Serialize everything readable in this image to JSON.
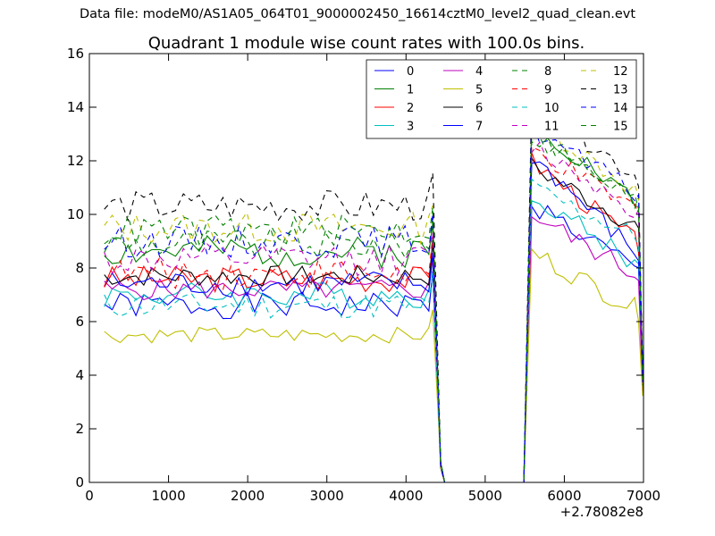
{
  "header": {
    "file_label": "Data file: modeM0/AS1A05_064T01_9000002450_16614cztM0_level2_quad_clean.evt"
  },
  "chart_data": {
    "type": "line",
    "title": "Quadrant 1 module wise count rates with 100.0s bins.",
    "xlabel": "",
    "ylabel": "",
    "x_offset_label": "+2.78082e8",
    "xlim": [
      0,
      7000
    ],
    "ylim": [
      0,
      16
    ],
    "xticks": [
      0,
      1000,
      2000,
      3000,
      4000,
      5000,
      6000,
      7000
    ],
    "yticks": [
      0,
      2,
      4,
      6,
      8,
      10,
      12,
      14,
      16
    ],
    "legend_position": "top-right",
    "legend_columns": 4,
    "grid": false,
    "x": [
      188,
      288,
      388,
      488,
      588,
      688,
      788,
      888,
      988,
      1088,
      1188,
      1288,
      1388,
      1488,
      1588,
      1688,
      1788,
      1888,
      1988,
      2088,
      2188,
      2288,
      2388,
      2488,
      2588,
      2688,
      2788,
      2888,
      2988,
      3088,
      3188,
      3288,
      3388,
      3488,
      3588,
      3688,
      3788,
      3888,
      3988,
      4088,
      4188,
      4288,
      4338,
      4438,
      4488,
      4588,
      5488,
      5588,
      5688,
      5788,
      5888,
      5988,
      6088,
      6188,
      6288,
      6388,
      6488,
      6588,
      6688,
      6788,
      6888,
      6938,
      6990
    ],
    "series": [
      {
        "name": "0",
        "color": "#0000ff",
        "style": "solid",
        "base": 6.6,
        "pre_amp": 0.5,
        "peak": 10.4,
        "post_end": 8.0
      },
      {
        "name": "1",
        "color": "#008000",
        "style": "solid",
        "base": 8.6,
        "pre_amp": 0.6,
        "peak": 13.5,
        "post_end": 10.5
      },
      {
        "name": "2",
        "color": "#ff0000",
        "style": "solid",
        "base": 7.6,
        "pre_amp": 0.5,
        "peak": 12.0,
        "post_end": 9.0
      },
      {
        "name": "3",
        "color": "#00bfbf",
        "style": "solid",
        "base": 7.0,
        "pre_amp": 0.5,
        "peak": 10.8,
        "post_end": 8.2
      },
      {
        "name": "4",
        "color": "#bf00bf",
        "style": "solid",
        "base": 7.2,
        "pre_amp": 0.4,
        "peak": 10.0,
        "post_end": 7.8
      },
      {
        "name": "5",
        "color": "#bfbf00",
        "style": "solid",
        "base": 5.5,
        "pre_amp": 0.3,
        "peak": 8.6,
        "post_end": 6.5
      },
      {
        "name": "6",
        "color": "#000000",
        "style": "solid",
        "base": 7.7,
        "pre_amp": 0.4,
        "peak": 11.8,
        "post_end": 9.6
      },
      {
        "name": "7",
        "color": "#0000ff",
        "style": "solid",
        "base": 7.4,
        "pre_amp": 0.5,
        "peak": 12.2,
        "post_end": 8.6
      },
      {
        "name": "8",
        "color": "#008000",
        "style": "dashed",
        "base": 8.9,
        "pre_amp": 0.6,
        "peak": 13.0,
        "post_end": 10.6
      },
      {
        "name": "9",
        "color": "#ff0000",
        "style": "dashed",
        "base": 7.8,
        "pre_amp": 0.6,
        "peak": 12.4,
        "post_end": 10.2
      },
      {
        "name": "10",
        "color": "#00bfbf",
        "style": "dashed",
        "base": 6.6,
        "pre_amp": 0.5,
        "peak": 11.0,
        "post_end": 9.2
      },
      {
        "name": "11",
        "color": "#bf00bf",
        "style": "dashed",
        "base": 8.3,
        "pre_amp": 0.6,
        "peak": 12.6,
        "post_end": 10.2
      },
      {
        "name": "12",
        "color": "#bfbf00",
        "style": "dashed",
        "base": 9.5,
        "pre_amp": 0.6,
        "peak": 13.6,
        "post_end": 10.9
      },
      {
        "name": "13",
        "color": "#000000",
        "style": "dashed",
        "base": 10.3,
        "pre_amp": 0.6,
        "peak": 14.2,
        "post_end": 11.5
      },
      {
        "name": "14",
        "color": "#0000ff",
        "style": "dashed",
        "base": 9.0,
        "pre_amp": 0.6,
        "peak": 13.2,
        "post_end": 10.8
      },
      {
        "name": "15",
        "color": "#008000",
        "style": "dashed",
        "base": 9.4,
        "pre_amp": 0.6,
        "peak": 13.0,
        "post_end": 10.5
      }
    ]
  }
}
